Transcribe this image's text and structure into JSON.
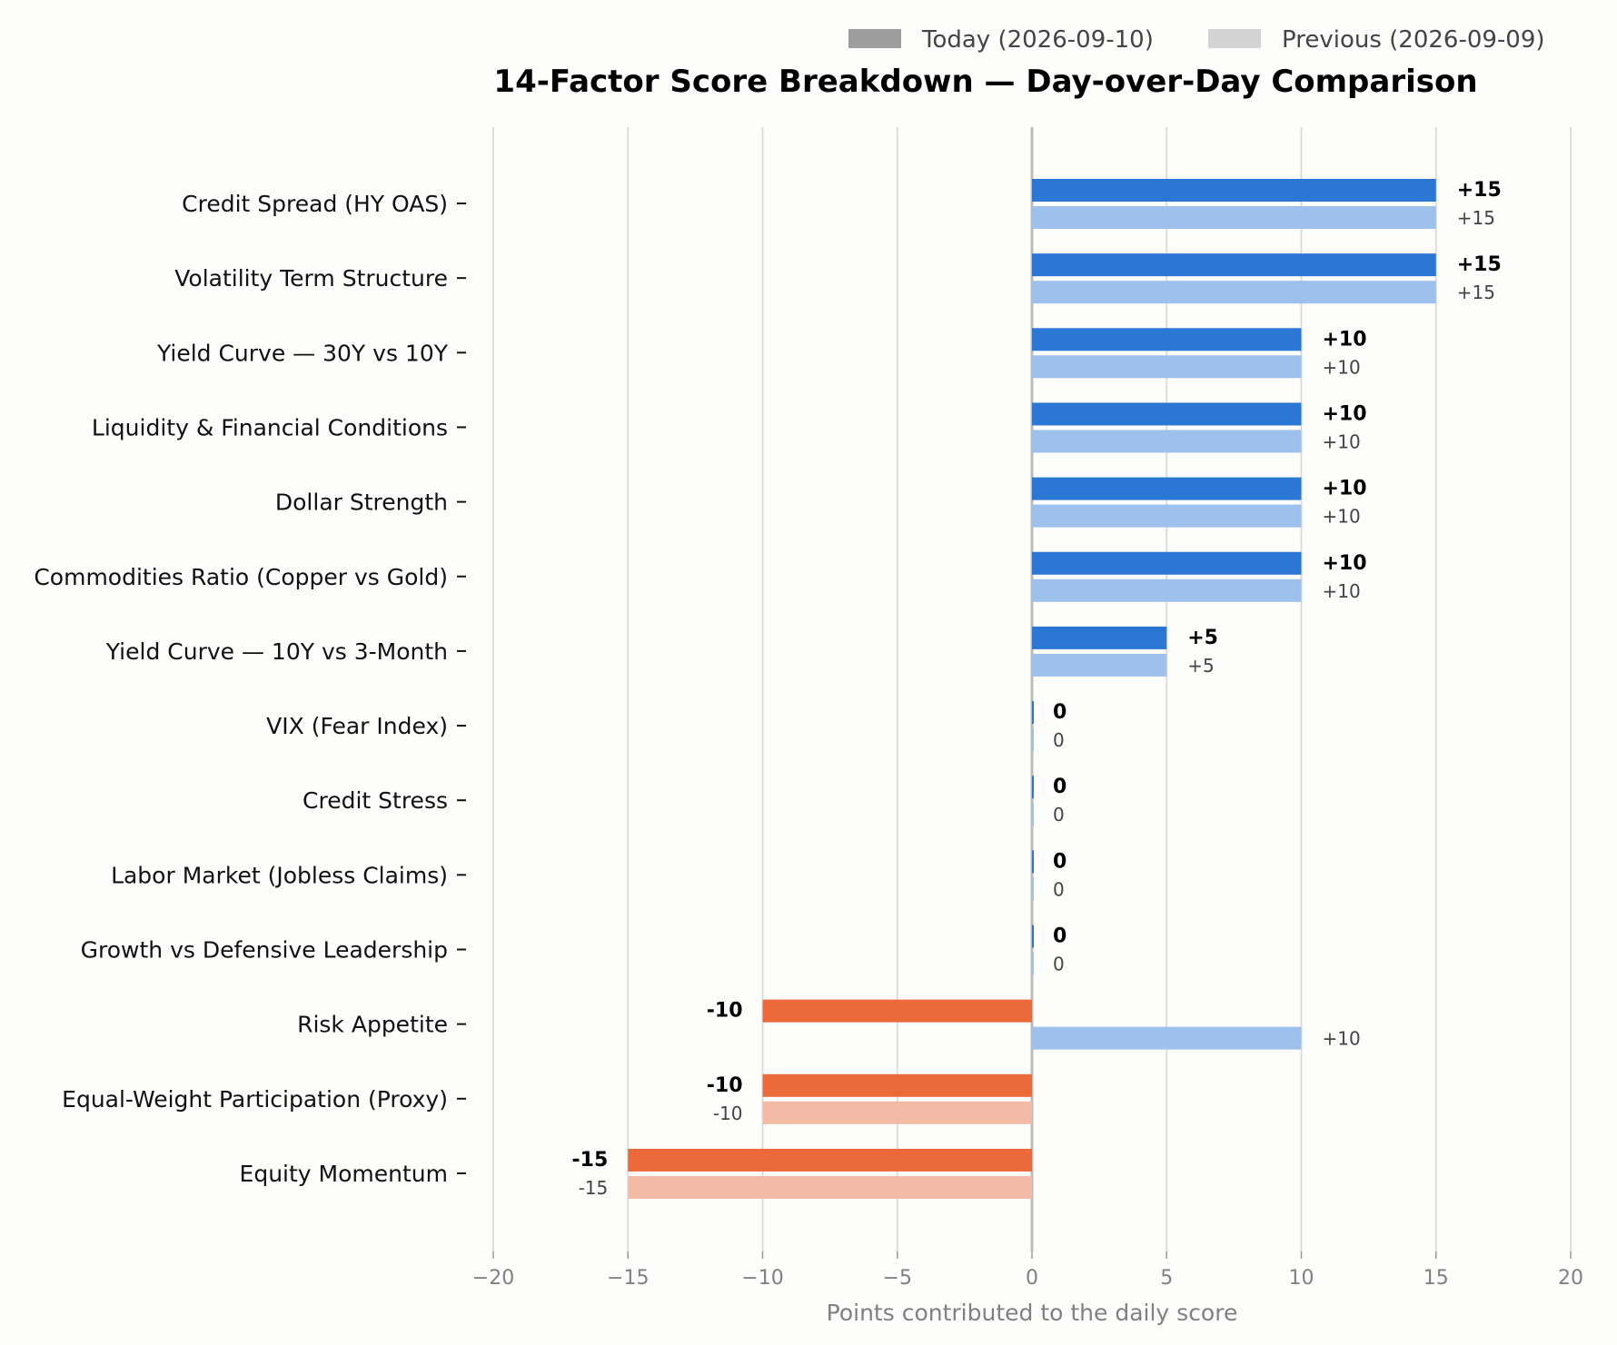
{
  "chart_data": {
    "type": "bar",
    "orientation": "horizontal",
    "title": "14-Factor Score Breakdown — Day-over-Day Comparison",
    "xlabel": "Points contributed to the daily score",
    "xlim": [
      -20,
      20
    ],
    "xticks": [
      -20,
      -15,
      -10,
      -5,
      0,
      5,
      10,
      15,
      20
    ],
    "xtick_labels": [
      "−20",
      "−15",
      "−10",
      "−5",
      "0",
      "5",
      "10",
      "15",
      "20"
    ],
    "grid": "vertical",
    "legend_position": "top-right",
    "categories": [
      "Credit Spread (HY OAS)",
      "Volatility Term Structure",
      "Yield Curve — 30Y vs 10Y",
      "Liquidity & Financial Conditions",
      "Dollar Strength",
      "Commodities Ratio (Copper vs Gold)",
      "Yield Curve — 10Y vs 3-Month",
      "VIX (Fear Index)",
      "Credit Stress",
      "Labor Market (Jobless Claims)",
      "Growth vs Defensive Leadership",
      "Risk Appetite",
      "Equal-Weight Participation (Proxy)",
      "Equity Momentum"
    ],
    "series": [
      {
        "name": "Today (2026-09-10)",
        "values": [
          15,
          15,
          10,
          10,
          10,
          10,
          5,
          0,
          0,
          0,
          0,
          -10,
          -10,
          -15
        ],
        "value_labels": [
          "+15",
          "+15",
          "+10",
          "+10",
          "+10",
          "+10",
          "+5",
          "0",
          "0",
          "0",
          "0",
          "-10",
          "-10",
          "-15"
        ]
      },
      {
        "name": "Previous (2026-09-09)",
        "values": [
          15,
          15,
          10,
          10,
          10,
          10,
          5,
          0,
          0,
          0,
          0,
          10,
          -10,
          -15
        ],
        "value_labels": [
          "+15",
          "+15",
          "+10",
          "+10",
          "+10",
          "+10",
          "+5",
          "0",
          "0",
          "0",
          "0",
          "+10",
          "-10",
          "-15"
        ]
      }
    ],
    "colors": {
      "positive_today": "#2b78d4",
      "positive_previous": "#9ec0ec",
      "negative_today": "#ec6a3a",
      "negative_previous": "#f3bba5",
      "legend_today": "#9e9e9e",
      "legend_previous": "#d3d3d3",
      "grid": "#dddddd",
      "zero_line": "#bbbbbb"
    }
  }
}
